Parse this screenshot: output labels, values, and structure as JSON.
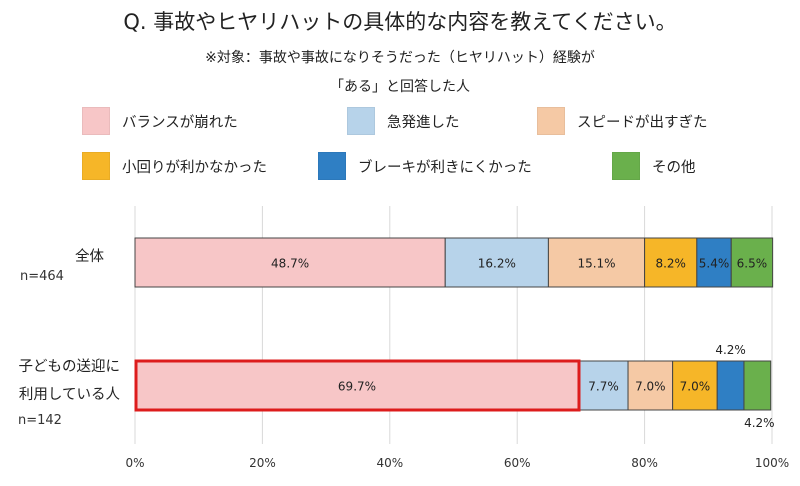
{
  "title": "Q. 事故やヒヤリハットの具体的な内容を教えてください。",
  "subtitle_lines": [
    "※対象：事故や事故になりそうだった（ヒヤリハット）経験が",
    "「ある」と回答した人"
  ],
  "colors": {
    "balance": "#f7c6c7",
    "sudden_start": "#b7d3ea",
    "speed": "#f5c9a5",
    "small_turn": "#f6b628",
    "brake": "#2f7fc4",
    "other": "#6ab04c",
    "highlight": "#dd1c1c",
    "grid": "#d9d9d9"
  },
  "legend": [
    {
      "key": "balance",
      "label": "バランスが崩れた"
    },
    {
      "key": "sudden_start",
      "label": "急発進した"
    },
    {
      "key": "speed",
      "label": "スピードが出すぎた"
    },
    {
      "key": "small_turn",
      "label": "小回りが利かなかった"
    },
    {
      "key": "brake",
      "label": "ブレーキが利きにくかった"
    },
    {
      "key": "other",
      "label": "その他"
    }
  ],
  "chart_data": {
    "type": "bar",
    "orientation": "horizontal",
    "stacked": true,
    "xlim": [
      0,
      100
    ],
    "x_ticks": [
      "0%",
      "20%",
      "40%",
      "60%",
      "80%",
      "100%"
    ],
    "grid": true,
    "legend_placement": "top",
    "categories": [
      {
        "name": "全体",
        "n": "n=464"
      },
      {
        "name": "子どもの送迎に利用している人",
        "name_lines": [
          "子どもの送迎に",
          "利用している人"
        ],
        "n": "n=142"
      }
    ],
    "series": [
      {
        "key": "balance",
        "name": "バランスが崩れた",
        "values": [
          48.7,
          69.7
        ],
        "labels": [
          "48.7%",
          "69.7%"
        ]
      },
      {
        "key": "sudden_start",
        "name": "急発進した",
        "values": [
          16.2,
          7.7
        ],
        "labels": [
          "16.2%",
          "7.7%"
        ]
      },
      {
        "key": "speed",
        "name": "スピードが出すぎた",
        "values": [
          15.1,
          7.0
        ],
        "labels": [
          "15.1%",
          "7.0%"
        ]
      },
      {
        "key": "small_turn",
        "name": "小回りが利かなかった",
        "values": [
          8.2,
          7.0
        ],
        "labels": [
          "8.2%",
          "7.0%"
        ]
      },
      {
        "key": "brake",
        "name": "ブレーキが利きにくかった",
        "values": [
          5.4,
          4.2
        ],
        "labels": [
          "5.4%",
          "4.2%"
        ]
      },
      {
        "key": "other",
        "name": "その他",
        "values": [
          6.5,
          4.2
        ],
        "labels": [
          "6.5%",
          "4.2%"
        ]
      }
    ],
    "highlight": {
      "category_index": 1,
      "series_index": 0
    }
  }
}
